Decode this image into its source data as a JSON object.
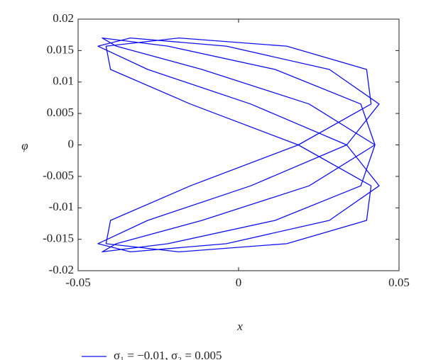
{
  "chart_data": {
    "type": "line",
    "xlabel": "x",
    "ylabel": "φ",
    "xlim": [
      -0.05,
      0.05
    ],
    "xticks": [
      -0.05,
      0,
      0.05
    ],
    "ylim": [
      -0.02,
      0.02
    ],
    "yticks": [
      -0.02,
      -0.015,
      -0.01,
      -0.005,
      0,
      0.005,
      0.01,
      0.015,
      0.02
    ],
    "legend": "bottom",
    "series": [
      {
        "name": "σ₁ = −0.01, σ₂ = 0.005",
        "color": "#1010ee",
        "x": [
          0.0425,
          0.022,
          -0.0114,
          -0.0381,
          -0.0425,
          -0.022,
          0.0114,
          0.0381,
          0.0425,
          0.022,
          -0.0114,
          -0.0381,
          -0.0425,
          -0.022,
          0.0114,
          0.0381,
          0.0425,
          null,
          0.0337,
          0.0038,
          -0.0283,
          -0.0438,
          -0.0337,
          -0.0038,
          0.0283,
          0.0438,
          0.0337,
          0.0038,
          -0.0283,
          -0.0438,
          -0.0337,
          -0.0038,
          0.0283,
          0.0438,
          0.0337,
          null,
          0.0186,
          -0.015,
          -0.0399,
          -0.0413,
          -0.0186,
          0.015,
          0.0399,
          0.0413,
          0.0186,
          -0.015,
          -0.0399,
          -0.0413,
          -0.0186,
          0.015,
          0.0399,
          0.0413,
          0.0186
        ],
        "values": [
          0,
          0.0065,
          0.012,
          0.0157,
          0.017,
          0.0157,
          0.012,
          0.0065,
          0,
          -0.0065,
          -0.012,
          -0.0157,
          -0.017,
          -0.0157,
          -0.012,
          -0.0065,
          0,
          null,
          0,
          0.0065,
          0.012,
          0.0157,
          0.017,
          0.0157,
          0.012,
          0.0065,
          0,
          -0.0065,
          -0.012,
          -0.0157,
          -0.017,
          -0.0157,
          -0.012,
          -0.0065,
          0,
          null,
          0,
          0.0065,
          0.012,
          0.0157,
          0.017,
          0.0157,
          0.012,
          0.0065,
          0,
          -0.0065,
          -0.012,
          -0.0157,
          -0.017,
          -0.0157,
          -0.012,
          -0.0065,
          0
        ]
      }
    ]
  }
}
